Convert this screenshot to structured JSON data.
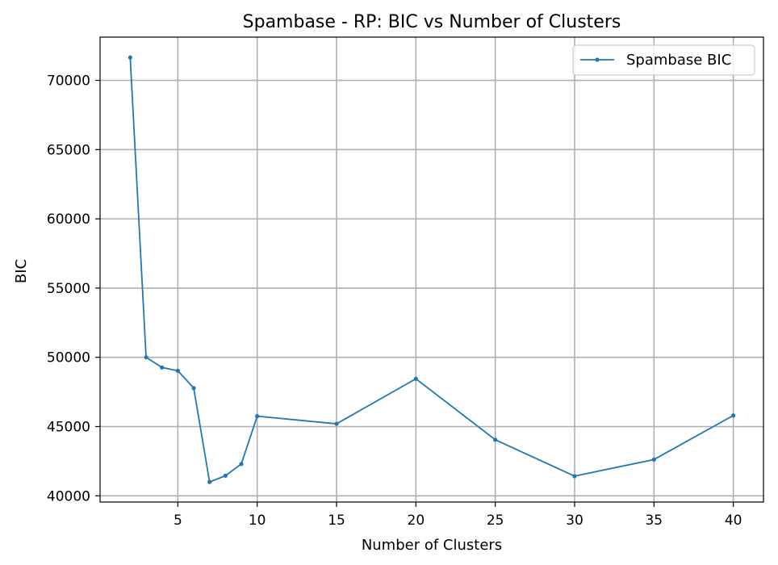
{
  "chart_data": {
    "type": "line",
    "title": "Spambase - RP: BIC vs Number of Clusters",
    "xlabel": "Number of Clusters",
    "ylabel": "BIC",
    "xlim": [
      0.1,
      41.9
    ],
    "ylim": [
      39550,
      73120
    ],
    "xticks": [
      5,
      10,
      15,
      20,
      25,
      30,
      35,
      40
    ],
    "yticks": [
      40000,
      45000,
      50000,
      55000,
      60000,
      65000,
      70000
    ],
    "grid": true,
    "legend_position": "top-right",
    "series": [
      {
        "name": "Spambase BIC",
        "color": "#1f77b4",
        "marker": "circle",
        "x": [
          2,
          3,
          4,
          5,
          6,
          7,
          8,
          9,
          10,
          15,
          20,
          25,
          30,
          35,
          40
        ],
        "y": [
          71650,
          50000,
          49270,
          49030,
          47780,
          41000,
          41450,
          42300,
          45750,
          45200,
          48450,
          44050,
          41420,
          42620,
          45800
        ]
      }
    ]
  }
}
